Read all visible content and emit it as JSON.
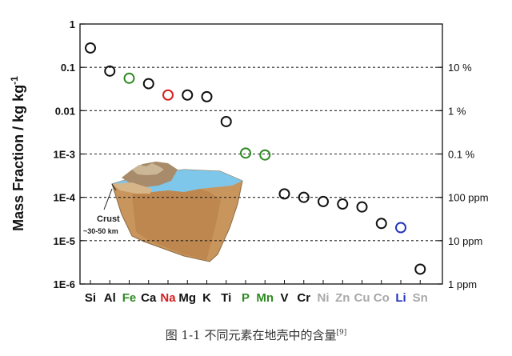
{
  "chart_data": {
    "type": "scatter",
    "ylabel": "Mass Fraction  /  kg kg",
    "ylabel_sup": "-1",
    "y_scale": "log",
    "ylim": [
      1e-06,
      1
    ],
    "y_ticks": [
      {
        "value": 1,
        "label": "1"
      },
      {
        "value": 0.1,
        "label": "0.1"
      },
      {
        "value": 0.01,
        "label": "0.01"
      },
      {
        "value": 0.001,
        "label": "1E-3"
      },
      {
        "value": 0.0001,
        "label": "1E-4"
      },
      {
        "value": 1e-05,
        "label": "1E-5"
      },
      {
        "value": 1e-06,
        "label": "1E-6"
      }
    ],
    "right_ticks": [
      {
        "value": 0.1,
        "label": "10 %"
      },
      {
        "value": 0.01,
        "label": "1 %"
      },
      {
        "value": 0.001,
        "label": "0.1 %"
      },
      {
        "value": 0.0001,
        "label": "100 ppm"
      },
      {
        "value": 1e-05,
        "label": "10 ppm"
      },
      {
        "value": 1e-06,
        "label": "1 ppm"
      }
    ],
    "dashed_gridlines": [
      0.1,
      0.01,
      0.001,
      0.0001,
      1e-05
    ],
    "categories": [
      "Si",
      "Al",
      "Fe",
      "Ca",
      "Na",
      "Mg",
      "K",
      "Ti",
      "P",
      "Mn",
      "V",
      "Cr",
      "Ni",
      "Zn",
      "Cu",
      "Co",
      "Li",
      "Sn"
    ],
    "category_colors": [
      "#111111",
      "#111111",
      "#2e8b22",
      "#111111",
      "#d42020",
      "#111111",
      "#111111",
      "#111111",
      "#2e8b22",
      "#2e8b22",
      "#111111",
      "#111111",
      "#a8a8a8",
      "#a8a8a8",
      "#a8a8a8",
      "#a8a8a8",
      "#2233bb",
      "#a8a8a8"
    ],
    "values": [
      0.28,
      0.082,
      0.056,
      0.042,
      0.023,
      0.023,
      0.021,
      0.0056,
      0.00105,
      0.00095,
      0.00012,
      0.0001,
      8e-05,
      7e-05,
      6e-05,
      2.5e-05,
      2e-05,
      2.2e-06
    ],
    "point_colors": [
      "#111111",
      "#111111",
      "#2e8b22",
      "#111111",
      "#d42020",
      "#111111",
      "#111111",
      "#111111",
      "#2e8b22",
      "#2e8b22",
      "#111111",
      "#111111",
      "#111111",
      "#111111",
      "#111111",
      "#111111",
      "#2233bb",
      "#111111"
    ],
    "grid": false
  },
  "inset": {
    "label": "Crust",
    "sublabel": "~30-50 km"
  },
  "caption": {
    "text": "图 1-1   不同元素在地壳中的含量",
    "ref": "[9]"
  }
}
